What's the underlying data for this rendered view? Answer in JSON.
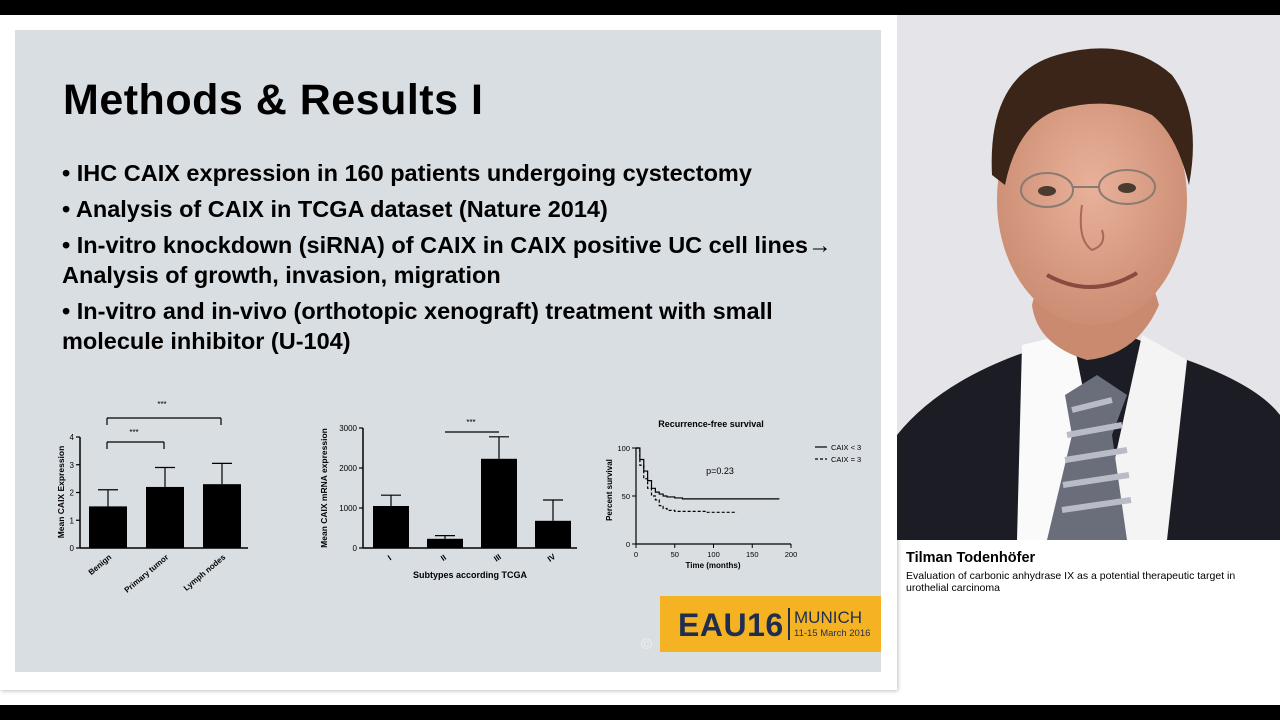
{
  "slide": {
    "title": "Methods & Results I",
    "bullets": [
      "• IHC CAIX expression in 160 patients undergoing cystectomy",
      "• Analysis of CAIX in TCGA dataset (Nature 2014)",
      "• In-vitro knockdown (siRNA) of CAIX in CAIX positive UC cell lines→ Analysis of growth, invasion, migration",
      "• In-vitro and in-vivo (orthotopic xenograft) treatment with small molecule inhibitor (U-104)"
    ],
    "logo": {
      "brand": "EAU16",
      "city": "MUNICH",
      "dates": "11-15 March 2016",
      "color": "#f5b324"
    },
    "copyright": "©"
  },
  "speaker": {
    "name": "Tilman Todenhöfer",
    "talk_title": "Evaluation of carbonic anhydrase IX as a potential therapeutic target in urothelial carcinoma"
  },
  "chart_data": [
    {
      "type": "bar",
      "categories": [
        "Benign",
        "Primary tumor",
        "Lymph nodes"
      ],
      "values": [
        1.5,
        2.2,
        2.3
      ],
      "errors": [
        0.6,
        0.7,
        0.75
      ],
      "ylabel": "Mean CAIX Expression",
      "ylim": [
        0,
        4
      ],
      "yticks": [
        "0",
        "1",
        "2",
        "3",
        "4"
      ],
      "significance": [
        "***",
        "***"
      ]
    },
    {
      "type": "bar",
      "categories": [
        "I",
        "II",
        "III",
        "IV"
      ],
      "values": [
        1050,
        230,
        2230,
        680
      ],
      "errors": [
        270,
        80,
        550,
        520
      ],
      "xlabel": "Subtypes according TCGA",
      "ylabel": "Mean CAIX mRNA expression",
      "ylim": [
        0,
        3000
      ],
      "yticks": [
        "0",
        "1000",
        "2000",
        "3000"
      ],
      "significance": [
        "***"
      ]
    },
    {
      "type": "line",
      "title": "Recurrence-free survival",
      "xlabel": "Time (months)",
      "ylabel": "Percent survival",
      "xlim": [
        0,
        200
      ],
      "ylim": [
        0,
        100
      ],
      "xticks": [
        "0",
        "50",
        "100",
        "150",
        "200"
      ],
      "yticks": [
        "0",
        "50",
        "100"
      ],
      "annotation": "p=0.23",
      "series": [
        {
          "name": "CAIX < 3",
          "x": [
            0,
            5,
            10,
            15,
            20,
            25,
            30,
            35,
            40,
            50,
            60,
            80,
            100,
            120,
            140,
            160,
            185
          ],
          "y": [
            100,
            88,
            76,
            66,
            58,
            54,
            52,
            50,
            49,
            48,
            47,
            47,
            47,
            47,
            47,
            47,
            47
          ]
        },
        {
          "name": "CAIX = 3",
          "x": [
            0,
            5,
            10,
            15,
            20,
            25,
            30,
            35,
            40,
            50,
            70,
            90,
            110,
            130
          ],
          "y": [
            100,
            82,
            68,
            58,
            50,
            46,
            40,
            37,
            35,
            34,
            34,
            33,
            33,
            33
          ]
        }
      ]
    }
  ]
}
